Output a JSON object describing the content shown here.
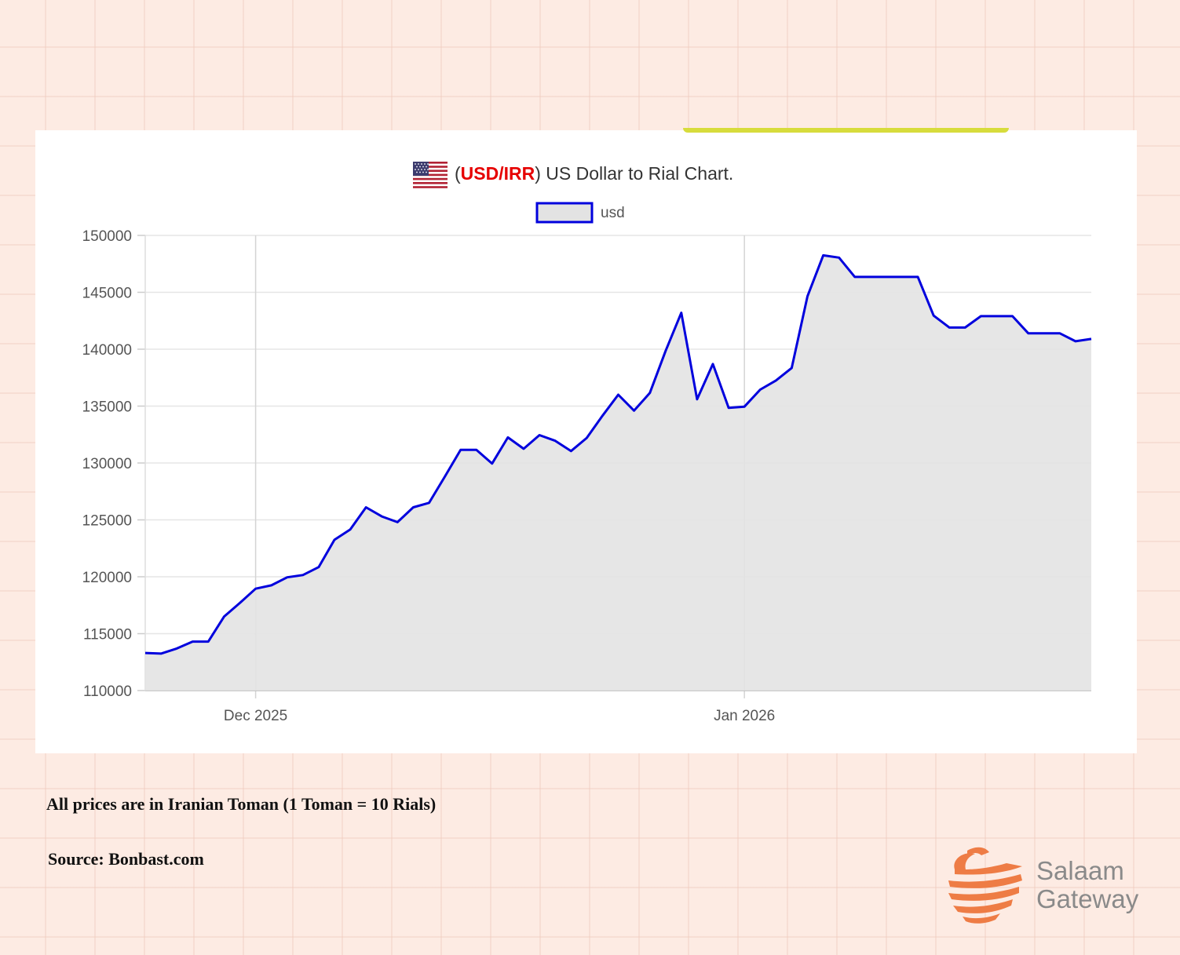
{
  "chart_data": {
    "type": "area",
    "title": {
      "code_prefix": "(",
      "code": "USD/IRR",
      "rest": ") US Dollar to Rial Chart."
    },
    "legend": {
      "label": "usd",
      "position": "top-center"
    },
    "series": [
      {
        "name": "usd",
        "values": [
          113300,
          113250,
          113700,
          114300,
          114300,
          116500,
          117700,
          118950,
          119250,
          119950,
          120150,
          120850,
          123250,
          124150,
          126100,
          125300,
          124800,
          126100,
          126500,
          128800,
          131150,
          131150,
          129950,
          132250,
          131250,
          132450,
          131950,
          131050,
          132200,
          134150,
          136000,
          134600,
          136150,
          139850,
          143200,
          135600,
          138700,
          134850,
          134950,
          136450,
          137250,
          138350,
          144650,
          148250,
          148050,
          146350,
          146350,
          146350,
          146350,
          146350,
          142950,
          141900,
          141900,
          142900,
          142900,
          142900,
          141400,
          141400,
          141400,
          140700,
          140900
        ]
      }
    ],
    "x_labels": [
      {
        "label": "Dec 2025",
        "index": 7
      },
      {
        "label": "Jan 2026",
        "index": 38
      }
    ],
    "yticks": [
      110000,
      115000,
      120000,
      125000,
      130000,
      135000,
      140000,
      145000,
      150000
    ],
    "ylim": [
      110000,
      150000
    ],
    "grid": true,
    "colors": {
      "line": "#0000dd",
      "fill": "#e3e3e3",
      "grid": "#e6e6e6",
      "accent": "#e60000"
    }
  },
  "notes": {
    "toman": "All prices are in Iranian Toman (1 Toman = 10 Rials)",
    "source": "Source: Bonbast.com"
  },
  "brand": {
    "line1": "Salaam",
    "line2": "Gateway",
    "logo_icon": "salaam-gateway-logo-icon",
    "color": "#ee7c45"
  },
  "flag_icon": "us-flag-icon"
}
